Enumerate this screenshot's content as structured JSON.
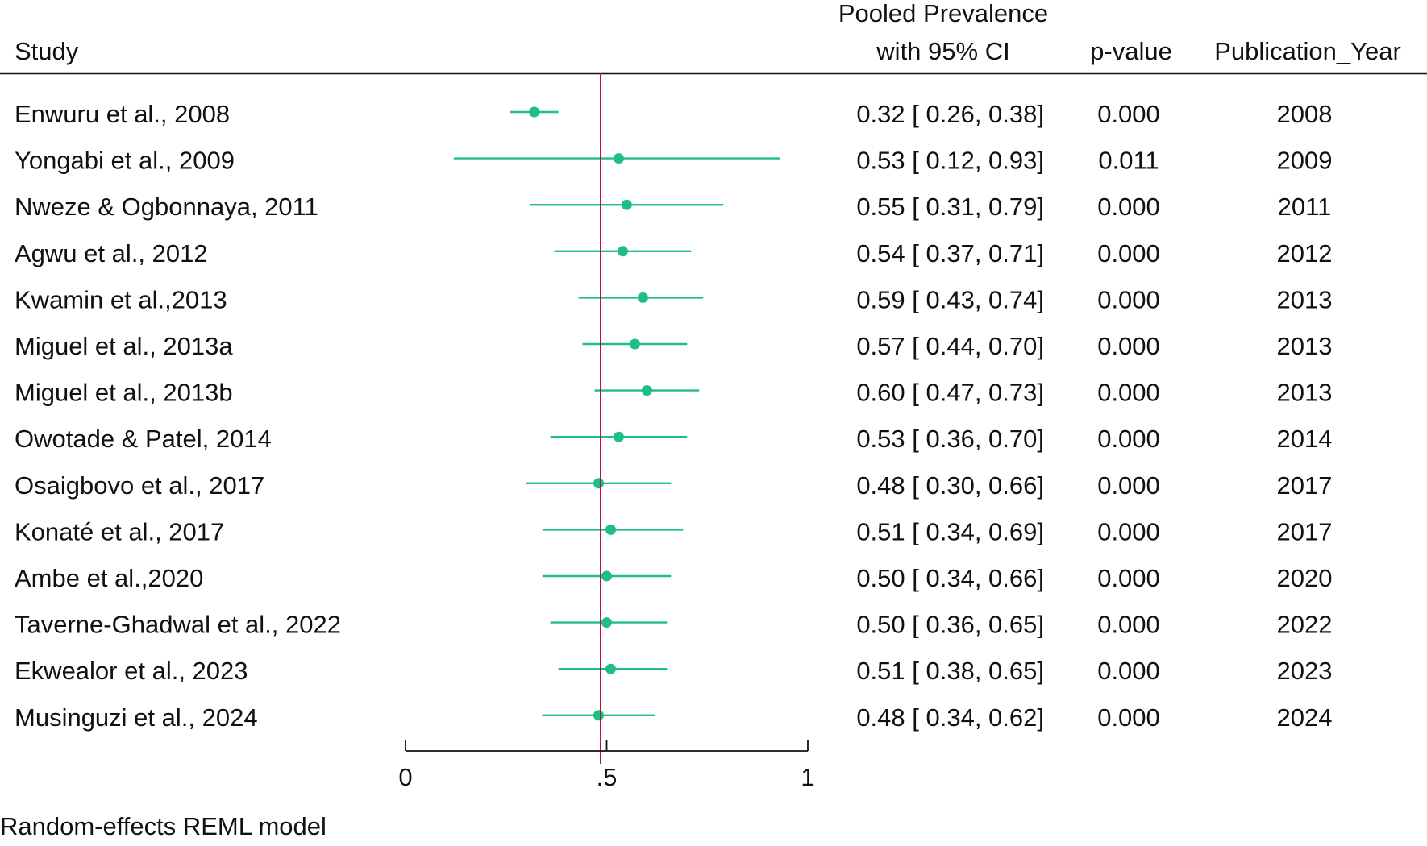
{
  "chart_data": {
    "type": "forest",
    "columns": {
      "study": "Study",
      "estimate_line1": "Pooled Prevalence",
      "estimate_line2": "with 95% CI",
      "pvalue": "p-value",
      "year": "Publication_Year"
    },
    "studies": [
      {
        "name": "Enwuru et al., 2008",
        "estimate": 0.32,
        "lower": 0.26,
        "upper": 0.38,
        "ci_text": "0.32 [ 0.26,  0.38]",
        "pvalue": "0.000",
        "year": "2008"
      },
      {
        "name": "Yongabi et al., 2009",
        "estimate": 0.53,
        "lower": 0.12,
        "upper": 0.93,
        "ci_text": "0.53 [ 0.12,  0.93]",
        "pvalue": "0.011",
        "year": "2009"
      },
      {
        "name": "Nweze & Ogbonnaya, 2011",
        "estimate": 0.55,
        "lower": 0.31,
        "upper": 0.79,
        "ci_text": "0.55 [ 0.31,  0.79]",
        "pvalue": "0.000",
        "year": "2011"
      },
      {
        "name": "Agwu et al., 2012",
        "estimate": 0.54,
        "lower": 0.37,
        "upper": 0.71,
        "ci_text": "0.54 [ 0.37,  0.71]",
        "pvalue": "0.000",
        "year": "2012"
      },
      {
        "name": "Kwamin et al.,2013",
        "estimate": 0.59,
        "lower": 0.43,
        "upper": 0.74,
        "ci_text": "0.59 [ 0.43,  0.74]",
        "pvalue": "0.000",
        "year": "2013"
      },
      {
        "name": "Miguel et al., 2013a",
        "estimate": 0.57,
        "lower": 0.44,
        "upper": 0.7,
        "ci_text": "0.57 [ 0.44,  0.70]",
        "pvalue": "0.000",
        "year": "2013"
      },
      {
        "name": "Miguel et al., 2013b",
        "estimate": 0.6,
        "lower": 0.47,
        "upper": 0.73,
        "ci_text": "0.60 [ 0.47,  0.73]",
        "pvalue": "0.000",
        "year": "2013"
      },
      {
        "name": "Owotade & Patel, 2014",
        "estimate": 0.53,
        "lower": 0.36,
        "upper": 0.7,
        "ci_text": "0.53 [ 0.36,  0.70]",
        "pvalue": "0.000",
        "year": "2014"
      },
      {
        "name": "Osaigbovo et al., 2017",
        "estimate": 0.48,
        "lower": 0.3,
        "upper": 0.66,
        "ci_text": "0.48 [ 0.30,  0.66]",
        "pvalue": "0.000",
        "year": "2017"
      },
      {
        "name": "Konaté et al., 2017",
        "estimate": 0.51,
        "lower": 0.34,
        "upper": 0.69,
        "ci_text": "0.51 [ 0.34,  0.69]",
        "pvalue": "0.000",
        "year": "2017"
      },
      {
        "name": "Ambe et al.,2020",
        "estimate": 0.5,
        "lower": 0.34,
        "upper": 0.66,
        "ci_text": "0.50 [ 0.34,  0.66]",
        "pvalue": "0.000",
        "year": "2020"
      },
      {
        "name": "Taverne-Ghadwal et al., 2022",
        "estimate": 0.5,
        "lower": 0.36,
        "upper": 0.65,
        "ci_text": "0.50 [ 0.36,  0.65]",
        "pvalue": "0.000",
        "year": "2022"
      },
      {
        "name": "Ekwealor et al., 2023",
        "estimate": 0.51,
        "lower": 0.38,
        "upper": 0.65,
        "ci_text": "0.51 [ 0.38,  0.65]",
        "pvalue": "0.000",
        "year": "2023"
      },
      {
        "name": "Musinguzi et al., 2024",
        "estimate": 0.48,
        "lower": 0.34,
        "upper": 0.62,
        "ci_text": "0.48 [ 0.34,  0.62]",
        "pvalue": "0.000",
        "year": "2024"
      }
    ],
    "reference_line": 0.485,
    "axis": {
      "range": [
        0,
        1
      ],
      "ticks": [
        0,
        0.5,
        1
      ],
      "tick_labels": [
        "0",
        ".5",
        "1"
      ]
    },
    "footnote": "Random-effects REML model",
    "colors": {
      "marker": "#1fbf83",
      "reference_line": "#b5123e",
      "text": "#111111"
    }
  }
}
